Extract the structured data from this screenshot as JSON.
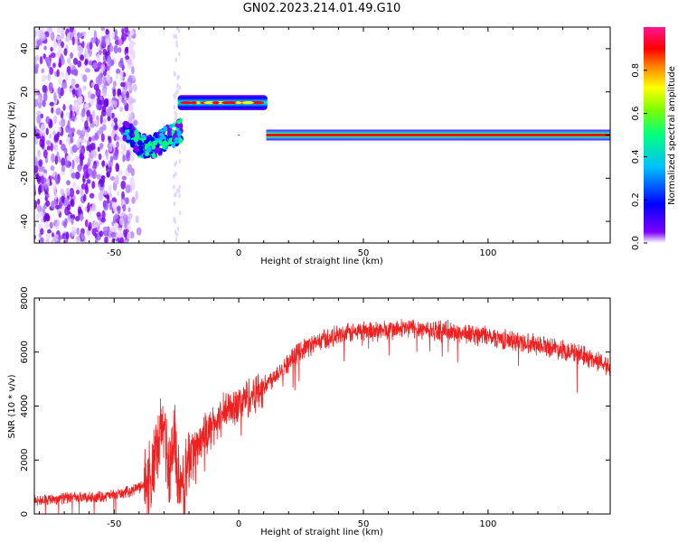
{
  "title": "GN02.2023.214.01.49.G10",
  "chart_data": [
    {
      "type": "heatmap",
      "xlabel": "Height of straight line (km)",
      "ylabel": "Frequency (Hz)",
      "xlim": [
        -82,
        149
      ],
      "ylim": [
        -50,
        50
      ],
      "xticks": [
        -50,
        0,
        50,
        100
      ],
      "yticks": [
        -40,
        -20,
        0,
        20,
        40
      ],
      "colorbar": {
        "label": "Normalized spectral amplitude",
        "range": [
          0,
          1
        ],
        "ticks": [
          0.0,
          0.2,
          0.4,
          0.6,
          0.8
        ],
        "colors": [
          "#ffffff",
          "#7f00ff",
          "#0000ff",
          "#00bfff",
          "#00ff80",
          "#80ff00",
          "#ffff00",
          "#ff8000",
          "#ff0000",
          "#ff1493"
        ]
      },
      "features": [
        {
          "x_range": [
            -82,
            -42
          ],
          "freq_range": [
            -50,
            50
          ],
          "amplitude": 0.1
        },
        {
          "x_range": [
            -46,
            -24
          ],
          "freq_center": -2,
          "amplitude": 0.35
        },
        {
          "x_range": [
            -24,
            11
          ],
          "freq_center": 15,
          "amplitude": 0.85
        },
        {
          "x_range": [
            11,
            149
          ],
          "freq_center": 0,
          "amplitude": 0.95
        }
      ]
    },
    {
      "type": "line",
      "xlabel": "Height of straight line (km)",
      "ylabel": "SNR (10 * v/v)",
      "xlim": [
        -82,
        149
      ],
      "ylim": [
        0,
        8000
      ],
      "xticks": [
        -50,
        0,
        50,
        100
      ],
      "yticks": [
        0,
        2000,
        4000,
        6000,
        8000
      ],
      "series": [
        {
          "color": "#ee2020",
          "x": [
            -82,
            -70,
            -60,
            -50,
            -45,
            -40,
            -35,
            -32,
            -30,
            -28,
            -26,
            -24,
            -22,
            -20,
            -15,
            -10,
            -5,
            0,
            5,
            10,
            15,
            20,
            25,
            30,
            35,
            40,
            45,
            50,
            60,
            70,
            80,
            90,
            100,
            110,
            120,
            130,
            140,
            149
          ],
          "y": [
            500,
            600,
            600,
            700,
            800,
            1000,
            1300,
            2500,
            3500,
            1500,
            3000,
            800,
            1000,
            2000,
            2800,
            3300,
            3800,
            4100,
            4400,
            4700,
            5200,
            5600,
            6100,
            6300,
            6500,
            6600,
            6700,
            6800,
            6800,
            6900,
            6800,
            6700,
            6600,
            6400,
            6300,
            6100,
            5800,
            5500
          ]
        }
      ]
    }
  ]
}
